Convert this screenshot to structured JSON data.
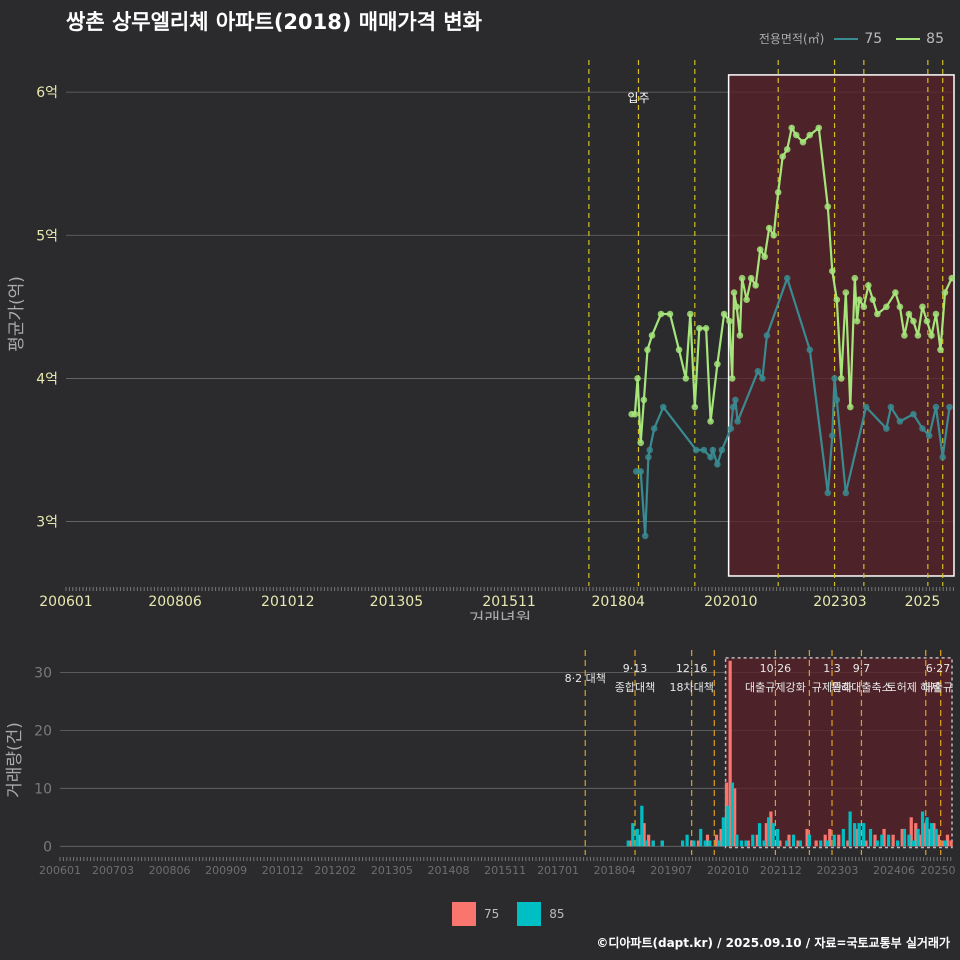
{
  "title": "쌍촌 상무엘리체 아파트(2018) 매매가격 변화",
  "legend_top": {
    "label": "전용면적(㎡)",
    "items": [
      {
        "name": "75",
        "color": "#3a8a91"
      },
      {
        "name": "85",
        "color": "#a5e57b"
      }
    ]
  },
  "legend_bottom": {
    "items": [
      {
        "name": "75",
        "color": "#f8766d"
      },
      {
        "name": "85",
        "color": "#00bfc4"
      }
    ]
  },
  "footer": "©디아파트(dapt.kr) / 2025.09.10 / 자료=국토교통부 실거래가",
  "chart_data": [
    {
      "id": "price",
      "type": "line",
      "title": "쌍촌 상무엘리체 아파트(2018) 매매가격 변화",
      "xlabel": "거래년월",
      "ylabel": "평균가(억)",
      "xlim": [
        2006.0,
        2025.7
      ],
      "ylim": [
        2.55,
        6.35
      ],
      "x_ticks": [
        {
          "x": 2006.0,
          "label": "200601"
        },
        {
          "x": 2008.42,
          "label": "200806"
        },
        {
          "x": 2010.92,
          "label": "201012"
        },
        {
          "x": 2013.33,
          "label": "201305"
        },
        {
          "x": 2015.83,
          "label": "201511"
        },
        {
          "x": 2018.25,
          "label": "201804"
        },
        {
          "x": 2020.75,
          "label": "202010"
        },
        {
          "x": 2023.17,
          "label": "202303"
        },
        {
          "x": 2025.0,
          "label": "2025"
        }
      ],
      "y_ticks": [
        {
          "y": 3,
          "label": "3억"
        },
        {
          "y": 4,
          "label": "4억"
        },
        {
          "y": 5,
          "label": "5억"
        },
        {
          "y": 6,
          "label": "6억"
        }
      ],
      "vlines": [
        2017.6,
        2018.7,
        2019.95,
        2021.8,
        2023.05,
        2023.7,
        2025.12,
        2025.45
      ],
      "move_in": {
        "x": 2018.7,
        "label": "입주"
      },
      "highlight": {
        "x0": 2020.7,
        "x1": 2025.7,
        "y0": 2.62,
        "y1": 6.12
      },
      "series": [
        {
          "name": "75",
          "color": "#3a8a91",
          "points": [
            [
              2018.65,
              3.35
            ],
            [
              2018.75,
              3.35
            ],
            [
              2018.85,
              2.9
            ],
            [
              2018.92,
              3.45
            ],
            [
              2018.95,
              3.5
            ],
            [
              2019.05,
              3.65
            ],
            [
              2019.25,
              3.8
            ],
            [
              2019.98,
              3.5
            ],
            [
              2020.15,
              3.5
            ],
            [
              2020.3,
              3.45
            ],
            [
              2020.35,
              3.5
            ],
            [
              2020.45,
              3.4
            ],
            [
              2020.55,
              3.5
            ],
            [
              2020.75,
              3.65
            ],
            [
              2020.8,
              3.8
            ],
            [
              2020.85,
              3.85
            ],
            [
              2020.9,
              3.7
            ],
            [
              2021.35,
              4.05
            ],
            [
              2021.45,
              4.0
            ],
            [
              2021.55,
              4.3
            ],
            [
              2022.0,
              4.7
            ],
            [
              2022.5,
              4.2
            ],
            [
              2022.9,
              3.2
            ],
            [
              2023.0,
              3.6
            ],
            [
              2023.05,
              4.0
            ],
            [
              2023.1,
              3.85
            ],
            [
              2023.3,
              3.2
            ],
            [
              2023.75,
              3.8
            ],
            [
              2024.2,
              3.65
            ],
            [
              2024.3,
              3.8
            ],
            [
              2024.5,
              3.7
            ],
            [
              2024.8,
              3.75
            ],
            [
              2025.0,
              3.65
            ],
            [
              2025.15,
              3.6
            ],
            [
              2025.3,
              3.8
            ],
            [
              2025.45,
              3.45
            ],
            [
              2025.6,
              3.8
            ]
          ]
        },
        {
          "name": "85",
          "color": "#a5e57b",
          "points": [
            [
              2018.55,
              3.75
            ],
            [
              2018.62,
              3.75
            ],
            [
              2018.68,
              4.0
            ],
            [
              2018.75,
              3.55
            ],
            [
              2018.82,
              3.85
            ],
            [
              2018.9,
              4.2
            ],
            [
              2019.0,
              4.3
            ],
            [
              2019.2,
              4.45
            ],
            [
              2019.4,
              4.45
            ],
            [
              2019.6,
              4.2
            ],
            [
              2019.75,
              4.0
            ],
            [
              2019.85,
              4.45
            ],
            [
              2019.95,
              3.8
            ],
            [
              2020.05,
              4.35
            ],
            [
              2020.2,
              4.35
            ],
            [
              2020.3,
              3.7
            ],
            [
              2020.45,
              4.1
            ],
            [
              2020.6,
              4.45
            ],
            [
              2020.72,
              4.4
            ],
            [
              2020.78,
              4.0
            ],
            [
              2020.82,
              4.6
            ],
            [
              2020.88,
              4.5
            ],
            [
              2020.95,
              4.3
            ],
            [
              2021.0,
              4.7
            ],
            [
              2021.1,
              4.55
            ],
            [
              2021.2,
              4.7
            ],
            [
              2021.3,
              4.65
            ],
            [
              2021.4,
              4.9
            ],
            [
              2021.5,
              4.85
            ],
            [
              2021.6,
              5.05
            ],
            [
              2021.7,
              5.0
            ],
            [
              2021.8,
              5.3
            ],
            [
              2021.9,
              5.55
            ],
            [
              2022.0,
              5.6
            ],
            [
              2022.1,
              5.75
            ],
            [
              2022.2,
              5.7
            ],
            [
              2022.35,
              5.65
            ],
            [
              2022.5,
              5.7
            ],
            [
              2022.7,
              5.75
            ],
            [
              2022.9,
              5.2
            ],
            [
              2023.0,
              4.75
            ],
            [
              2023.1,
              4.55
            ],
            [
              2023.2,
              4.0
            ],
            [
              2023.3,
              4.6
            ],
            [
              2023.4,
              3.8
            ],
            [
              2023.5,
              4.7
            ],
            [
              2023.55,
              4.4
            ],
            [
              2023.6,
              4.55
            ],
            [
              2023.7,
              4.5
            ],
            [
              2023.8,
              4.65
            ],
            [
              2023.9,
              4.55
            ],
            [
              2024.0,
              4.45
            ],
            [
              2024.2,
              4.5
            ],
            [
              2024.4,
              4.6
            ],
            [
              2024.5,
              4.5
            ],
            [
              2024.6,
              4.3
            ],
            [
              2024.7,
              4.45
            ],
            [
              2024.8,
              4.4
            ],
            [
              2024.9,
              4.3
            ],
            [
              2025.0,
              4.5
            ],
            [
              2025.1,
              4.4
            ],
            [
              2025.2,
              4.3
            ],
            [
              2025.3,
              4.45
            ],
            [
              2025.4,
              4.2
            ],
            [
              2025.5,
              4.6
            ],
            [
              2025.65,
              4.7
            ]
          ]
        }
      ]
    },
    {
      "id": "volume",
      "type": "bar",
      "xlabel": "",
      "ylabel": "거래량(건)",
      "xlim": [
        2006.0,
        2025.7
      ],
      "ylim": [
        -1.5,
        33
      ],
      "x_ticks": [
        {
          "x": 2006.0,
          "label": "200601"
        },
        {
          "x": 2007.17,
          "label": "200703"
        },
        {
          "x": 2008.42,
          "label": "200806"
        },
        {
          "x": 2009.67,
          "label": "200909"
        },
        {
          "x": 2010.92,
          "label": "201012"
        },
        {
          "x": 2012.08,
          "label": "201202"
        },
        {
          "x": 2013.33,
          "label": "201305"
        },
        {
          "x": 2014.58,
          "label": "201408"
        },
        {
          "x": 2015.83,
          "label": "201511"
        },
        {
          "x": 2017.0,
          "label": "201701"
        },
        {
          "x": 2018.25,
          "label": "201804"
        },
        {
          "x": 2019.5,
          "label": "201907"
        },
        {
          "x": 2020.75,
          "label": "202010"
        },
        {
          "x": 2021.92,
          "label": "202112"
        },
        {
          "x": 2023.17,
          "label": "202303"
        },
        {
          "x": 2024.42,
          "label": "202406"
        },
        {
          "x": 2025.6,
          "label": "20250"
        }
      ],
      "y_ticks": [
        {
          "y": 0,
          "label": "0"
        },
        {
          "y": 10,
          "label": "10"
        },
        {
          "y": 20,
          "label": "20"
        },
        {
          "y": 30,
          "label": "30"
        }
      ],
      "vlines": [
        2017.6,
        2018.7,
        2019.95,
        2020.45,
        2021.8,
        2022.55,
        2023.05,
        2023.7,
        2025.12,
        2025.45
      ],
      "highlight": {
        "x0": 2020.7,
        "x1": 2025.7,
        "y0": -0.2,
        "y1": 32.5
      },
      "annotations": [
        {
          "x": 2017.6,
          "lines": [
            "8·2 대책"
          ]
        },
        {
          "x": 2018.7,
          "lines": [
            "9·13",
            "종합대책"
          ]
        },
        {
          "x": 2019.95,
          "lines": [
            "12·16",
            "18차대책"
          ]
        },
        {
          "x": 2021.8,
          "lines": [
            "10·26",
            "대출규제강화"
          ]
        },
        {
          "x": 2023.05,
          "lines": [
            "1·3",
            "규제완화"
          ]
        },
        {
          "x": 2023.7,
          "lines": [
            "9·7",
            "특례대출축소"
          ]
        },
        {
          "x": 2024.85,
          "lines": [
            "",
            "토허제 해제"
          ]
        },
        {
          "x": 2025.45,
          "lines": [
            "6·27",
            "대출규"
          ]
        }
      ],
      "series": [
        {
          "name": "75",
          "color": "#f8766d",
          "points": [
            [
              2018.6,
              1
            ],
            [
              2018.8,
              2
            ],
            [
              2018.9,
              4
            ],
            [
              2019.0,
              2
            ],
            [
              2019.1,
              1
            ],
            [
              2019.3,
              1
            ],
            [
              2019.95,
              1
            ],
            [
              2020.1,
              1
            ],
            [
              2020.3,
              2
            ],
            [
              2020.5,
              2
            ],
            [
              2020.6,
              3
            ],
            [
              2020.72,
              11
            ],
            [
              2020.8,
              32
            ],
            [
              2020.9,
              10
            ],
            [
              2021.2,
              1
            ],
            [
              2021.4,
              2
            ],
            [
              2021.6,
              4
            ],
            [
              2021.7,
              6
            ],
            [
              2021.9,
              1
            ],
            [
              2022.1,
              2
            ],
            [
              2022.3,
              1
            ],
            [
              2022.5,
              3
            ],
            [
              2022.7,
              1
            ],
            [
              2022.9,
              2
            ],
            [
              2023.0,
              3
            ],
            [
              2023.2,
              2
            ],
            [
              2023.4,
              1
            ],
            [
              2023.6,
              3
            ],
            [
              2023.8,
              1
            ],
            [
              2024.0,
              2
            ],
            [
              2024.2,
              3
            ],
            [
              2024.4,
              2
            ],
            [
              2024.6,
              3
            ],
            [
              2024.8,
              5
            ],
            [
              2024.9,
              4
            ],
            [
              2025.0,
              2
            ],
            [
              2025.1,
              4
            ],
            [
              2025.2,
              3
            ],
            [
              2025.3,
              4
            ],
            [
              2025.4,
              2
            ],
            [
              2025.5,
              1
            ],
            [
              2025.6,
              2
            ],
            [
              2025.68,
              1
            ]
          ]
        },
        {
          "name": "85",
          "color": "#00bfc4",
          "points": [
            [
              2018.55,
              1
            ],
            [
              2018.65,
              4
            ],
            [
              2018.75,
              3
            ],
            [
              2018.85,
              7
            ],
            [
              2018.95,
              1
            ],
            [
              2019.1,
              1
            ],
            [
              2019.3,
              1
            ],
            [
              2019.75,
              1
            ],
            [
              2019.85,
              2
            ],
            [
              2020.0,
              1
            ],
            [
              2020.15,
              3
            ],
            [
              2020.25,
              1
            ],
            [
              2020.35,
              1
            ],
            [
              2020.55,
              1
            ],
            [
              2020.65,
              5
            ],
            [
              2020.75,
              7
            ],
            [
              2020.85,
              11
            ],
            [
              2020.95,
              2
            ],
            [
              2021.05,
              1
            ],
            [
              2021.15,
              1
            ],
            [
              2021.3,
              2
            ],
            [
              2021.45,
              4
            ],
            [
              2021.55,
              1
            ],
            [
              2021.65,
              5
            ],
            [
              2021.75,
              4
            ],
            [
              2021.85,
              3
            ],
            [
              2022.05,
              1
            ],
            [
              2022.2,
              2
            ],
            [
              2022.35,
              1
            ],
            [
              2022.55,
              2
            ],
            [
              2022.8,
              1
            ],
            [
              2022.95,
              1
            ],
            [
              2023.1,
              2
            ],
            [
              2023.3,
              3
            ],
            [
              2023.45,
              6
            ],
            [
              2023.55,
              4
            ],
            [
              2023.65,
              4
            ],
            [
              2023.75,
              4
            ],
            [
              2023.9,
              3
            ],
            [
              2024.05,
              1
            ],
            [
              2024.15,
              2
            ],
            [
              2024.3,
              2
            ],
            [
              2024.5,
              1
            ],
            [
              2024.65,
              3
            ],
            [
              2024.75,
              2
            ],
            [
              2024.85,
              1
            ],
            [
              2024.95,
              3
            ],
            [
              2025.05,
              6
            ],
            [
              2025.15,
              5
            ],
            [
              2025.25,
              4
            ],
            [
              2025.35,
              3
            ],
            [
              2025.55,
              1
            ]
          ]
        }
      ]
    }
  ]
}
